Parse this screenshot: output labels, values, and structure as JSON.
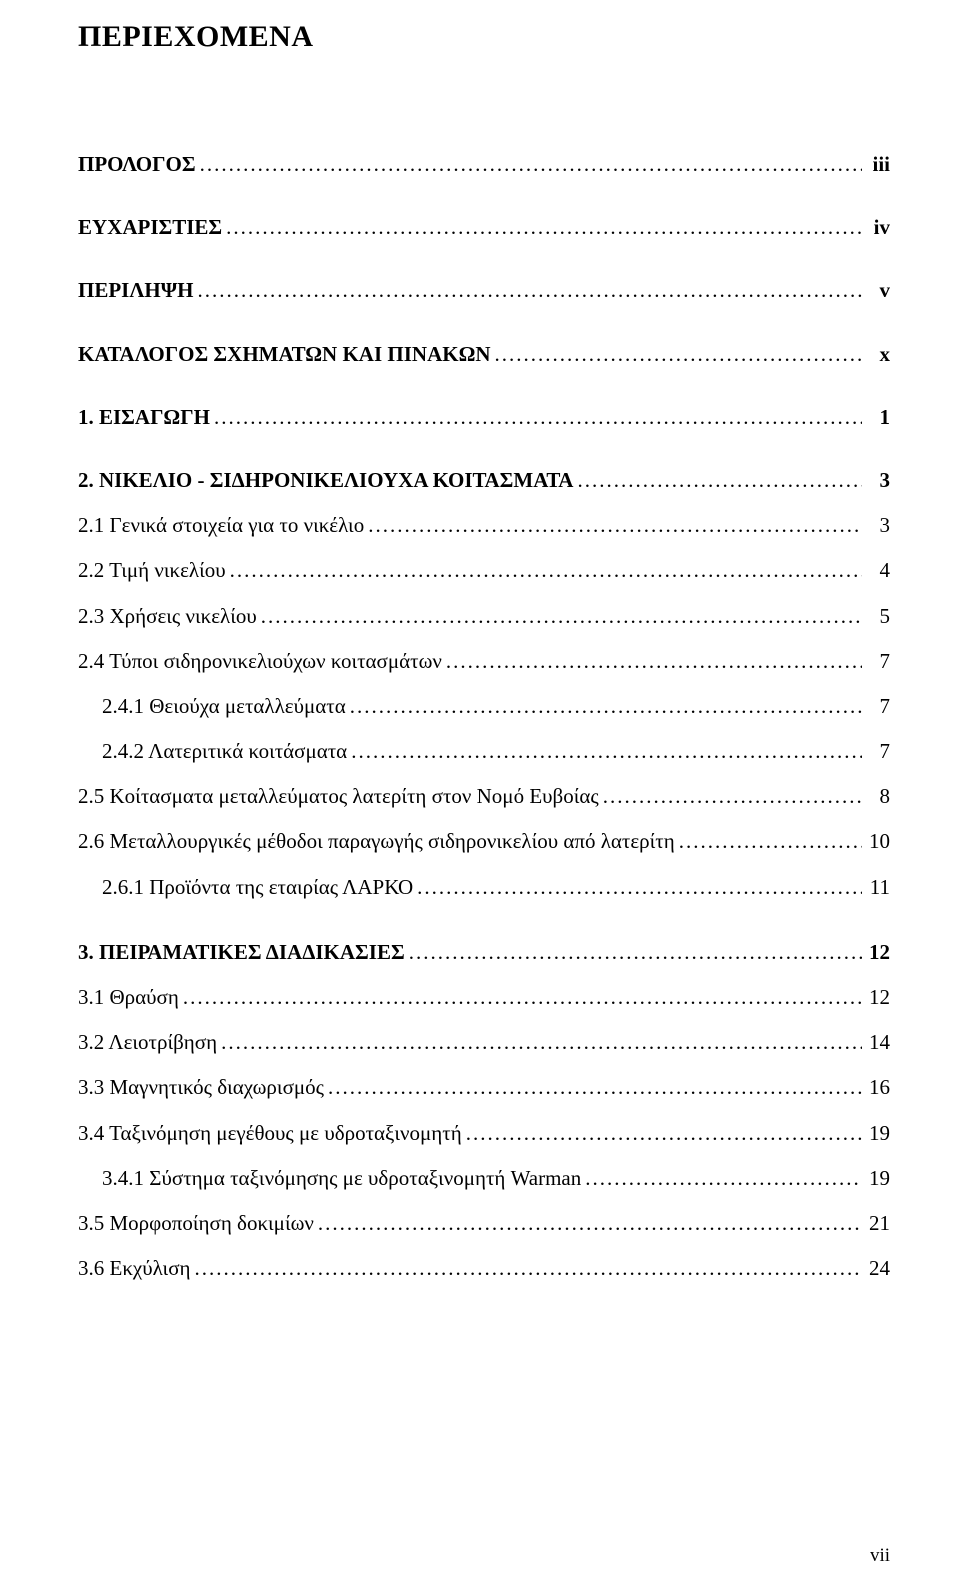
{
  "title": "ΠΕΡΙΕΧΟΜΕΝΑ",
  "page_number": "vii",
  "entries": [
    {
      "label": "ΠΡΟΛΟΓΟΣ",
      "page": "iii",
      "bold": true,
      "indent": 0,
      "gap_after": true
    },
    {
      "label": "ΕΥΧΑΡΙΣΤΙΕΣ",
      "page": "iv",
      "bold": true,
      "indent": 0,
      "gap_after": true
    },
    {
      "label": "ΠΕΡΙΛΗΨΗ",
      "page": "v",
      "bold": true,
      "indent": 0,
      "gap_after": true
    },
    {
      "label": "ΚΑΤΑΛΟΓΟΣ ΣΧΗΜΑΤΩΝ ΚΑΙ ΠΙΝΑΚΩΝ",
      "page": "x",
      "bold": true,
      "indent": 0,
      "gap_after": true
    },
    {
      "label": "1. ΕΙΣΑΓΩΓΗ",
      "page": "1",
      "bold": true,
      "indent": 0,
      "gap_after": true
    },
    {
      "label": "2. ΝΙΚΕΛΙΟ - ΣΙΔΗΡΟΝΙΚΕΛΙΟΥΧΑ ΚΟΙΤΑΣΜΑΤΑ",
      "page": "3",
      "bold": true,
      "indent": 0
    },
    {
      "label": "2.1 Γενικά στοιχεία για το νικέλιο",
      "page": "3",
      "bold": false,
      "indent": 0
    },
    {
      "label": "2.2 Τιμή νικελίου",
      "page": "4",
      "bold": false,
      "indent": 0
    },
    {
      "label": "2.3 Χρήσεις νικελίου",
      "page": "5",
      "bold": false,
      "indent": 0
    },
    {
      "label": "2.4 Τύποι σιδηρονικελιούχων κοιτασμάτων",
      "page": "7",
      "bold": false,
      "indent": 0
    },
    {
      "label": "2.4.1 Θειούχα μεταλλεύματα",
      "page": "7",
      "bold": false,
      "indent": 1
    },
    {
      "label": "2.4.2 Λατεριτικά κοιτάσματα",
      "page": "7",
      "bold": false,
      "indent": 1
    },
    {
      "label": "2.5 Κοίτασματα μεταλλεύματος λατερίτη στον Νομό Ευβοίας",
      "page": "8",
      "bold": false,
      "indent": 0
    },
    {
      "label": "2.6 Μεταλλουργικές μέθοδοι παραγωγής σιδηρονικελίου από λατερίτη",
      "page": "10",
      "bold": false,
      "indent": 0
    },
    {
      "label": "2.6.1 Προϊόντα της εταιρίας ΛΑΡΚΟ",
      "page": "11",
      "bold": false,
      "indent": 1,
      "section_gap_after": true
    },
    {
      "label": "3. ΠΕΙΡΑΜΑΤΙΚΕΣ ΔΙΑΔΙΚΑΣΙΕΣ",
      "page": "12",
      "bold": true,
      "indent": 0
    },
    {
      "label": "3.1 Θραύση",
      "page": "12",
      "bold": false,
      "indent": 0
    },
    {
      "label": "3.2 Λειοτρίβηση",
      "page": "14",
      "bold": false,
      "indent": 0
    },
    {
      "label": "3.3 Μαγνητικός διαχωρισμός",
      "page": "16",
      "bold": false,
      "indent": 0
    },
    {
      "label": "3.4 Ταξινόμηση μεγέθους με υδροταξινομητή",
      "page": "19",
      "bold": false,
      "indent": 0
    },
    {
      "label": "3.4.1 Σύστημα ταξινόμησης με υδροταξινομητή Warman",
      "page": "19",
      "bold": false,
      "indent": 1
    },
    {
      "label": "3.5 Μορφοποίηση δοκιμίων",
      "page": "21",
      "bold": false,
      "indent": 0
    },
    {
      "label": "3.6 Εκχύλιση",
      "page": "24",
      "bold": false,
      "indent": 0
    }
  ]
}
